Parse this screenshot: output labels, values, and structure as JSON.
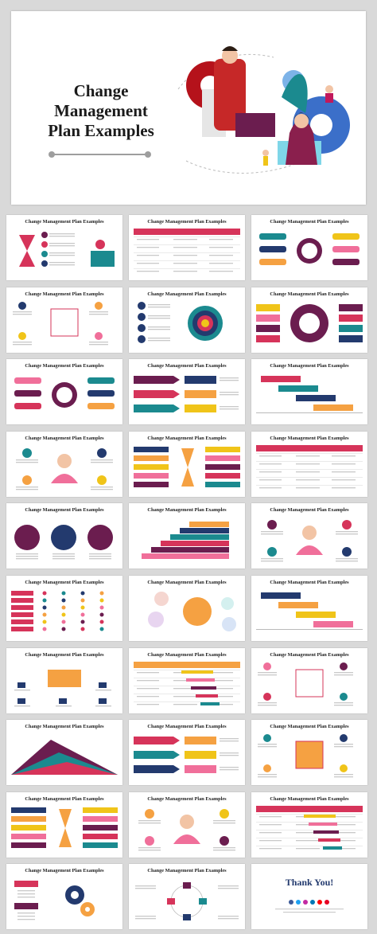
{
  "colors": {
    "purple": "#6b1d4f",
    "crimson": "#d6345a",
    "teal": "#1b8a8f",
    "navy": "#233a6e",
    "orange": "#f5a142",
    "yellow": "#f0c419",
    "pink": "#f06f9a",
    "lightblue": "#7db3e8"
  },
  "hero": {
    "title": "Change\nManagement\nPlan Examples"
  },
  "thumbnails": [
    {
      "title": "Change Management Plan Examples",
      "variant": "hourglass"
    },
    {
      "title": "Change Management Plan Examples",
      "variant": "table-red"
    },
    {
      "title": "Change Management Plan Examples",
      "variant": "center-circle"
    },
    {
      "title": "Change Management Plan Examples",
      "variant": "four-steps"
    },
    {
      "title": "Change Management Plan Examples",
      "variant": "target"
    },
    {
      "title": "Change Management Plan Examples",
      "variant": "arc-purple"
    },
    {
      "title": "Change Management Plan Examples",
      "variant": "circle-list"
    },
    {
      "title": "Change Management Plan Examples",
      "variant": "arrows"
    },
    {
      "title": "Change Management Plan Examples",
      "variant": "gantt-blocks"
    },
    {
      "title": "Change Management Plan Examples",
      "variant": "meditation"
    },
    {
      "title": "Change Management Plan Examples",
      "variant": "hourglass-list"
    },
    {
      "title": "Change Management Plan Examples",
      "variant": "table-grid"
    },
    {
      "title": "Change Management Plan Examples",
      "variant": "three-circles"
    },
    {
      "title": "Change Management Plan Examples",
      "variant": "staircase"
    },
    {
      "title": "Change Management Plan Examples",
      "variant": "person-circles"
    },
    {
      "title": "Change Management Plan Examples",
      "variant": "table-dots"
    },
    {
      "title": "Change Management Plan Examples",
      "variant": "bubbles"
    },
    {
      "title": "Change Management Plan Examples",
      "variant": "timeline-bars"
    },
    {
      "title": "Change Management Plan Examples",
      "variant": "center-box"
    },
    {
      "title": "Change Management Plan Examples",
      "variant": "gantt-table"
    },
    {
      "title": "Change Management Plan Examples",
      "variant": "square-cross"
    },
    {
      "title": "Change Management Plan Examples",
      "variant": "area-chart"
    },
    {
      "title": "Change Management Plan Examples",
      "variant": "step-bars"
    },
    {
      "title": "Change Management Plan Examples",
      "variant": "cross-diagram"
    },
    {
      "title": "Change Management Plan Examples",
      "variant": "stacked-list"
    },
    {
      "title": "Change Management Plan Examples",
      "variant": "person-clock"
    },
    {
      "title": "Change Management Plan Examples",
      "variant": "progress-table"
    },
    {
      "title": "Change Management Plan Examples",
      "variant": "gears"
    },
    {
      "title": "Change Management Plan Examples",
      "variant": "circle-flow"
    },
    {
      "title": "Thank You!",
      "variant": "thankyou"
    }
  ]
}
